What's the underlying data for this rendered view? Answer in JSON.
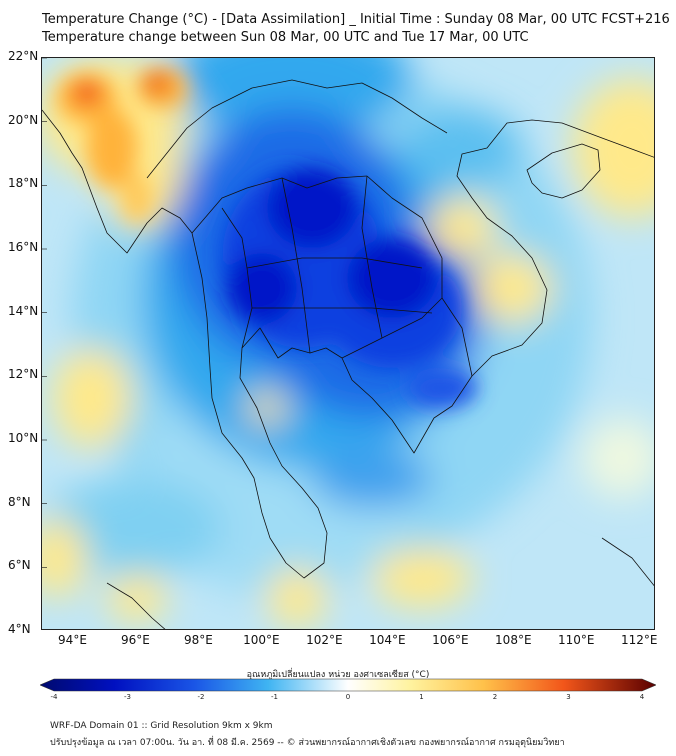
{
  "title_line1": "Temperature Change (°C) - [Data Assimilation] _ Initial Time : Sunday 08 Mar, 00 UTC FCST+216",
  "title_line2": "Temperature change between Sun 08 Mar, 00 UTC and Tue 17 Mar, 00 UTC",
  "map": {
    "lat_labels": [
      "22°N",
      "20°N",
      "18°N",
      "16°N",
      "14°N",
      "12°N",
      "10°N",
      "8°N",
      "6°N",
      "4°N"
    ],
    "lon_labels": [
      "94°E",
      "96°E",
      "98°E",
      "100°E",
      "102°E",
      "104°E",
      "106°E",
      "108°E",
      "110°E",
      "112°E"
    ],
    "extent": {
      "lon_min": 93,
      "lon_max": 112.5,
      "lat_min": 4,
      "lat_max": 22
    },
    "colors": {
      "background": "#bfe6f7",
      "light_blue": "#7fd0f2",
      "blue": "#33a8ee",
      "dark_blue": "#0a3fe0",
      "deepest_blue": "#0016c8",
      "yellow": "#ffe98a",
      "orange": "#ffb23a",
      "red_orange": "#f25c1a"
    }
  },
  "colorbar": {
    "title": "อุณหภูมิเปลี่ยนแปลง หน่วย องศาเซลเซียส (°C)",
    "min": -4,
    "max": 4,
    "tick_labels": [
      "-4",
      "-3",
      "-2",
      "-1",
      "0",
      "1",
      "2",
      "3",
      "4"
    ]
  },
  "footer_line1": "WRF-DA Domain 01 :: Grid Resolution 9km x 9km",
  "footer_line2": "ปรับปรุงข้อมูล ณ เวลา 07:00น. วัน อา. ที่ 08 มี.ค. 2569 -- © ส่วนพยากรณ์อากาศเชิงตัวเลข กองพยากรณ์อากาศ กรมอุตุนิยมวิทยา"
}
